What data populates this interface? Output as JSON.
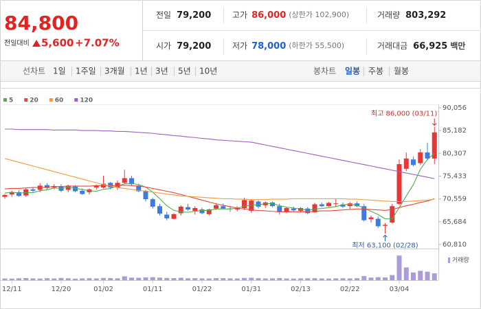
{
  "quote": {
    "price": "84,800",
    "change_label": "전일대비",
    "change": "5,600",
    "change_pct": "+7.07%"
  },
  "stats": [
    {
      "label": "전일",
      "value": "79,200"
    },
    {
      "label": "고가",
      "value": "86,000",
      "sub": "(상한가 102,900)"
    },
    {
      "label": "거래량",
      "value": "803,292"
    },
    {
      "label": "시가",
      "value": "79,200"
    },
    {
      "label": "저가",
      "value": "78,000",
      "sub": "(하한가 55,500)"
    },
    {
      "label": "거래대금",
      "value": "66,925",
      "unit": "백만"
    }
  ],
  "tabs": {
    "line_label": "선차트",
    "line_periods": [
      "1일",
      "1주일",
      "3개월",
      "1년",
      "3년",
      "5년",
      "10년"
    ],
    "candle_label": "봉차트",
    "candle_periods": [
      "일봉",
      "주봉",
      "월봉"
    ],
    "candle_selected": 0
  },
  "chart_data": {
    "type": "candlestick",
    "categories": [
      null,
      "12/11",
      null,
      null,
      null,
      null,
      null,
      null,
      "12/20",
      null,
      null,
      null,
      null,
      null,
      "01/02",
      null,
      null,
      null,
      null,
      null,
      null,
      "01/11",
      null,
      null,
      null,
      null,
      null,
      null,
      "01/22",
      null,
      null,
      null,
      null,
      null,
      null,
      "01/31",
      null,
      null,
      null,
      null,
      null,
      null,
      "02/13",
      null,
      null,
      null,
      null,
      null,
      null,
      "02/22",
      null,
      null,
      null,
      null,
      null,
      null,
      "03/04",
      null,
      null,
      null,
      null,
      null
    ],
    "open": [
      71000,
      71500,
      72000,
      71300,
      72600,
      72500,
      73500,
      73000,
      73300,
      72500,
      73200,
      72300,
      72000,
      73000,
      73000,
      74000,
      73000,
      74000,
      75000,
      73400,
      72300,
      70500,
      69000,
      67200,
      66300,
      67500,
      68800,
      68000,
      68300,
      67300,
      68500,
      69000,
      68500,
      68300,
      68600,
      68000,
      70000,
      69200,
      69800,
      69000,
      67800,
      68500,
      68000,
      68500,
      67700,
      69400,
      69000,
      69500,
      69400,
      69000,
      69600,
      69000,
      66200,
      66300,
      64800,
      65500,
      69500,
      77000,
      79000,
      78200,
      80500,
      79200
    ],
    "high": [
      71600,
      72300,
      72400,
      72800,
      73000,
      73900,
      73900,
      73700,
      73700,
      73600,
      73500,
      72800,
      72800,
      73600,
      75500,
      74200,
      74500,
      76800,
      75500,
      73800,
      72500,
      70800,
      69500,
      67800,
      67500,
      69200,
      69500,
      69000,
      68700,
      68500,
      69600,
      69600,
      69000,
      69000,
      70800,
      70500,
      70300,
      70000,
      70000,
      69500,
      68800,
      68900,
      68800,
      68800,
      69700,
      69800,
      69900,
      70500,
      69800,
      69900,
      70000,
      69500,
      67000,
      66800,
      65400,
      69500,
      79000,
      80500,
      79600,
      81200,
      82600,
      86000
    ],
    "low": [
      70600,
      71000,
      71000,
      71000,
      72000,
      72000,
      72600,
      72600,
      72000,
      72000,
      72000,
      71400,
      71500,
      72500,
      72800,
      72600,
      72500,
      73800,
      73500,
      72000,
      70000,
      68500,
      67000,
      66000,
      66200,
      67000,
      68000,
      67200,
      67300,
      67000,
      68200,
      68300,
      67800,
      67900,
      68200,
      67600,
      68500,
      68600,
      68800,
      67200,
      67500,
      67800,
      67700,
      67300,
      67600,
      68800,
      68900,
      68800,
      68600,
      68400,
      68800,
      65700,
      65500,
      64300,
      63100,
      65300,
      69200,
      76500,
      77500,
      77800,
      78800,
      78000
    ],
    "close": [
      71400,
      72000,
      71200,
      72600,
      72300,
      73400,
      72900,
      73300,
      72300,
      73400,
      72200,
      71600,
      72600,
      73400,
      73800,
      73000,
      74000,
      75000,
      73700,
      72200,
      70500,
      68900,
      67400,
      66400,
      67300,
      68900,
      68300,
      68600,
      67500,
      68300,
      69200,
      68500,
      68400,
      68600,
      70300,
      70200,
      68900,
      69800,
      69000,
      67700,
      68600,
      68100,
      68600,
      67500,
      69400,
      69000,
      69700,
      69600,
      68900,
      69600,
      69000,
      66000,
      66600,
      64700,
      65000,
      69000,
      78000,
      79200,
      77800,
      80500,
      79200,
      84800
    ],
    "up_color": "#e8353a",
    "down_color": "#3d7be0",
    "ma": [
      {
        "name": "5",
        "color": "#4cae4c",
        "values": [
          71800,
          72000,
          71800,
          71900,
          71900,
          72300,
          72500,
          72900,
          72800,
          73100,
          72800,
          72600,
          72300,
          72200,
          72600,
          72800,
          73300,
          73800,
          73900,
          73600,
          73100,
          72000,
          70600,
          69100,
          68100,
          67800,
          67700,
          67900,
          68100,
          68100,
          68400,
          68400,
          68400,
          68600,
          69000,
          69200,
          69300,
          69500,
          69600,
          69100,
          68800,
          68600,
          68400,
          68100,
          68400,
          68500,
          68700,
          68900,
          69300,
          69400,
          69200,
          68600,
          67900,
          67200,
          66300,
          66300,
          68700,
          71200,
          73600,
          76900,
          79000,
          80300
        ]
      },
      {
        "name": "20",
        "color": "#e8483a",
        "values": [
          72700,
          72800,
          72800,
          72900,
          73000,
          73000,
          73100,
          73200,
          73200,
          73300,
          73300,
          73300,
          73300,
          73400,
          73400,
          73400,
          73400,
          73500,
          73400,
          73300,
          73100,
          72800,
          72500,
          72200,
          71900,
          71500,
          71100,
          70700,
          70300,
          69900,
          69500,
          69200,
          68900,
          68600,
          68400,
          68200,
          68100,
          68000,
          67900,
          67800,
          67800,
          67800,
          67800,
          67800,
          67900,
          68000,
          68000,
          68100,
          68200,
          68300,
          68400,
          68400,
          68300,
          68200,
          68100,
          68300,
          68700,
          69100,
          69400,
          69800,
          70100,
          70600
        ]
      },
      {
        "name": "60",
        "color": "#f29a38",
        "values": [
          79200,
          78800,
          78400,
          78000,
          77600,
          77200,
          76800,
          76400,
          76000,
          75600,
          75200,
          74800,
          74400,
          74000,
          73600,
          73300,
          73000,
          72800,
          72600,
          72400,
          72200,
          72000,
          71800,
          71600,
          71400,
          71200,
          71100,
          71000,
          70900,
          70800,
          70700,
          70600,
          70600,
          70500,
          70500,
          70400,
          70400,
          70400,
          70500,
          70500,
          70500,
          70600,
          70600,
          70600,
          70600,
          70600,
          70600,
          70600,
          70600,
          70500,
          70500,
          70400,
          70300,
          70200,
          70100,
          70000,
          70000,
          70000,
          70100,
          70200,
          70300,
          70500
        ]
      },
      {
        "name": "120",
        "color": "#9b5fc0",
        "values": [
          85500,
          85500,
          85400,
          85400,
          85400,
          85400,
          85400,
          85300,
          85300,
          85300,
          85300,
          85200,
          85200,
          85200,
          85100,
          85100,
          85000,
          85000,
          84900,
          84800,
          84700,
          84600,
          84400,
          84300,
          84100,
          84000,
          83800,
          83700,
          83500,
          83400,
          83200,
          83100,
          83000,
          82900,
          82800,
          82700,
          82400,
          82100,
          81800,
          81500,
          81200,
          80900,
          80600,
          80300,
          80000,
          79700,
          79400,
          79100,
          78800,
          78500,
          78200,
          77900,
          77600,
          77300,
          77000,
          76700,
          76400,
          76100,
          75800,
          75500,
          75200,
          74900
        ]
      }
    ],
    "volume": {
      "name": "거래량",
      "color": "#ab9bd6",
      "values": [
        200000,
        180000,
        220000,
        250000,
        210000,
        190000,
        230000,
        200000,
        260000,
        220000,
        180000,
        210000,
        230000,
        200000,
        260000,
        240000,
        220000,
        450000,
        300000,
        280000,
        320000,
        350000,
        300000,
        260000,
        240000,
        280000,
        220000,
        230000,
        210000,
        200000,
        240000,
        230000,
        210000,
        200000,
        260000,
        280000,
        230000,
        200000,
        210000,
        250000,
        200000,
        190000,
        210000,
        220000,
        230000,
        200000,
        190000,
        210000,
        220000,
        200000,
        230000,
        480000,
        300000,
        350000,
        320000,
        600000,
        2900000,
        1500000,
        900000,
        1100000,
        1000000,
        803292
      ]
    },
    "volume_ylim": [
      0,
      3400000
    ],
    "ylim": [
      60810,
      90056
    ],
    "yticks": [
      {
        "value": 90056,
        "label": "90,056"
      },
      {
        "value": 85182,
        "label": "85,182"
      },
      {
        "value": 80307,
        "label": "80,307"
      },
      {
        "value": 75433,
        "label": "75,433"
      },
      {
        "value": 70559,
        "label": "70,559"
      },
      {
        "value": 65684,
        "label": "65,684"
      },
      {
        "value": 60810,
        "label": "60,810"
      }
    ],
    "grid": false,
    "high_label": "최고 86,000 (03/11)",
    "low_label": "최저 63,100 (02/28)",
    "high_color": "#c8302c",
    "low_color": "#2a5fa8"
  }
}
